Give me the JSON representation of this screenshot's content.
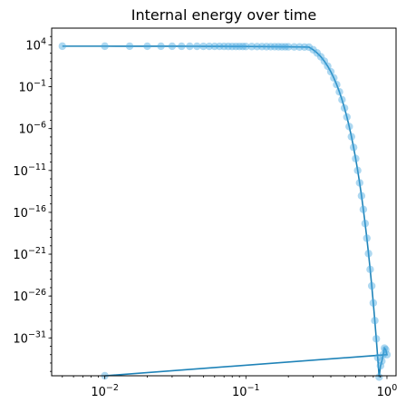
{
  "chart_data": {
    "type": "line",
    "title": "Internal energy over time",
    "xlabel": "",
    "ylabel": "",
    "xscale": "log",
    "yscale": "log",
    "xlim": [
      0.0042,
      1.16
    ],
    "ylim": [
      3e-36,
      1000000.0
    ],
    "grid": false,
    "x_ticks": [
      {
        "value": 0.01,
        "base": "10",
        "exp": "−2"
      },
      {
        "value": 0.1,
        "base": "10",
        "exp": "−1"
      },
      {
        "value": 1,
        "base": "10",
        "exp": "0"
      }
    ],
    "y_ticks": [
      {
        "value": 10000.0,
        "base": "10",
        "exp": "4"
      },
      {
        "value": 0.1,
        "base": "10",
        "exp": "−1"
      },
      {
        "value": 1e-06,
        "base": "10",
        "exp": "−6"
      },
      {
        "value": 1e-11,
        "base": "10",
        "exp": "−11"
      },
      {
        "value": 1e-16,
        "base": "10",
        "exp": "−16"
      },
      {
        "value": 1e-21,
        "base": "10",
        "exp": "−21"
      },
      {
        "value": 1e-26,
        "base": "10",
        "exp": "−26"
      },
      {
        "value": 1e-31,
        "base": "10",
        "exp": "−31"
      }
    ],
    "series": [
      {
        "style": "line-with-markers",
        "line_color": "#1f83b8",
        "marker_color": "#49a8e0",
        "marker_opacity": 0.45,
        "x": [
          0.005,
          0.01,
          0.015,
          0.02,
          0.025,
          0.03,
          0.035,
          0.04,
          0.045,
          0.05,
          0.055,
          0.06,
          0.065,
          0.07,
          0.075,
          0.08,
          0.085,
          0.09,
          0.095,
          0.1,
          0.11,
          0.12,
          0.13,
          0.14,
          0.15,
          0.16,
          0.17,
          0.18,
          0.19,
          0.2,
          0.22,
          0.24,
          0.26,
          0.28,
          0.3,
          0.32,
          0.34,
          0.36,
          0.38,
          0.4,
          0.42,
          0.44,
          0.46,
          0.48,
          0.5,
          0.52,
          0.54,
          0.56,
          0.58,
          0.6,
          0.62,
          0.64,
          0.66,
          0.68,
          0.7,
          0.72,
          0.74,
          0.76,
          0.78,
          0.8,
          0.82,
          0.84,
          0.86,
          0.88,
          0.9,
          0.92,
          0.94,
          0.96,
          0.98,
          1.0,
          0.01
        ],
        "y": [
          7000,
          7000,
          6965,
          6932,
          6899,
          6865,
          6832,
          6799,
          6767,
          6735,
          6702,
          6670,
          6639,
          6607,
          6575,
          6545,
          6512,
          6482,
          6450,
          6420,
          6359,
          6300,
          6240,
          6180,
          6122,
          6064,
          6007,
          5950,
          5894,
          5838,
          5728,
          5620,
          5515,
          5411,
          2616,
          1077,
          378,
          113,
          28.7,
          6.2,
          1.14,
          0.18,
          0.0245,
          0.00284,
          0.000282,
          2.4e-05,
          1.74e-06,
          1.08e-07,
          5.75e-09,
          2.6e-10,
          1e-11,
          3.31e-13,
          9.33e-15,
          2.24e-16,
          4.6e-18,
          8e-20,
          1.19e-21,
          1.51e-23,
          1.63e-25,
          1.5e-27,
          1.17e-29,
          7.8e-32,
          4.4e-34,
          2.1e-36,
          4.6e-35,
          1.7e-34,
          1e-33,
          6e-33,
          4e-33,
          1e-33,
          3e-36
        ]
      }
    ]
  }
}
